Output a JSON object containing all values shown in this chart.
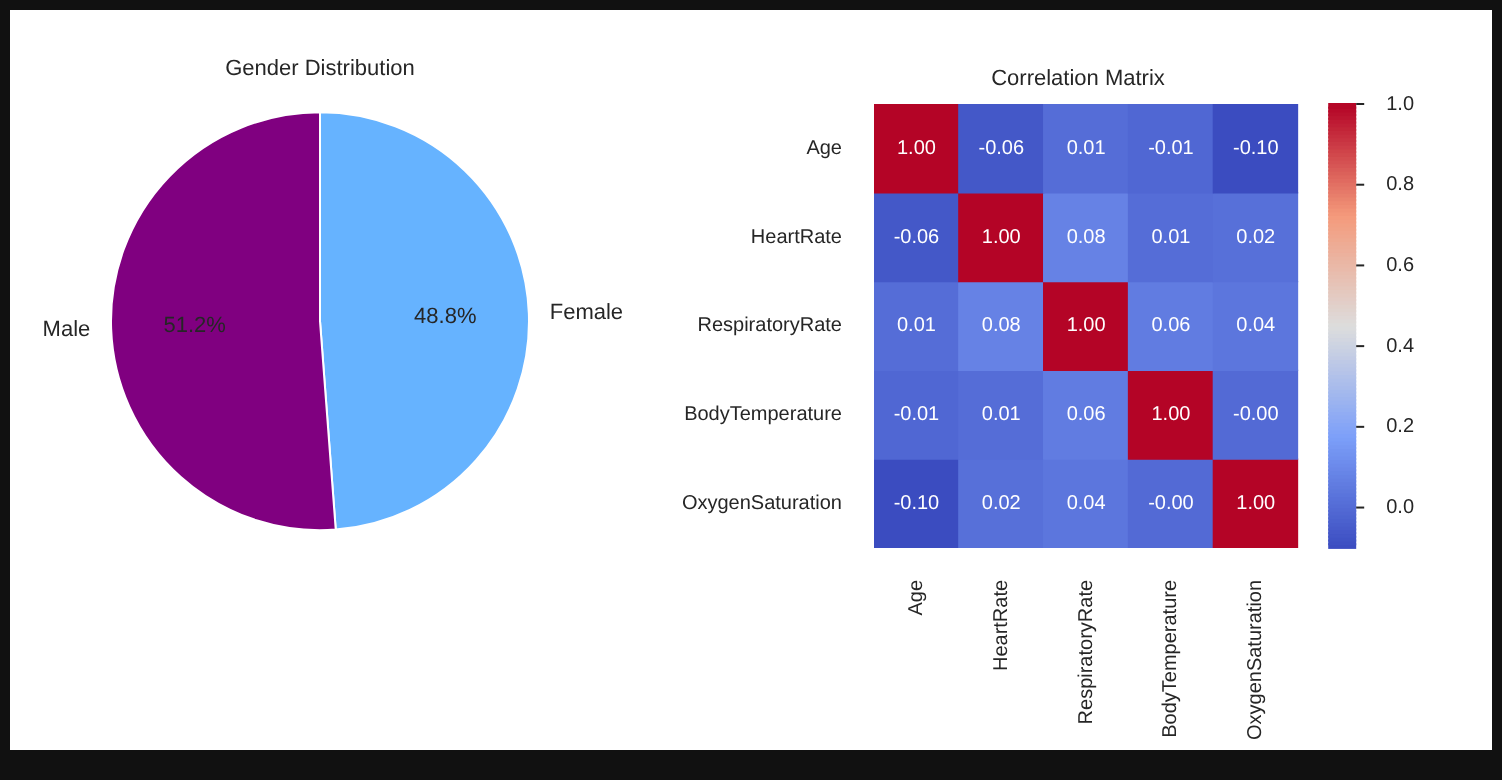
{
  "chart_data": [
    {
      "type": "pie",
      "title": "Gender Distribution",
      "categories": [
        "Female",
        "Male"
      ],
      "values": [
        48.8,
        51.2
      ],
      "colors": [
        "#66b3ff",
        "#800080"
      ],
      "value_labels": [
        "48.8%",
        "51.2%"
      ]
    },
    {
      "type": "heatmap",
      "title": "Correlation Matrix",
      "categories": [
        "Age",
        "HeartRate",
        "RespiratoryRate",
        "BodyTemperature",
        "OxygenSaturation"
      ],
      "y_categories": [
        "Age",
        "HeartRate",
        "RespiratoryRate",
        "BodyTemperature",
        "OxygenSaturation"
      ],
      "cells": [
        [
          1.0,
          -0.06,
          0.01,
          -0.01,
          -0.1
        ],
        [
          -0.06,
          1.0,
          0.08,
          0.01,
          0.02
        ],
        [
          0.01,
          0.08,
          1.0,
          0.06,
          0.04
        ],
        [
          -0.01,
          0.01,
          0.06,
          1.0,
          0
        ],
        [
          -0.1,
          0.02,
          0.04,
          0,
          1.0
        ]
      ],
      "cell_labels": [
        [
          "1.00",
          "-0.06",
          "0.01",
          "-0.01",
          "-0.10"
        ],
        [
          "-0.06",
          "1.00",
          "0.08",
          "0.01",
          "0.02"
        ],
        [
          "0.01",
          "0.08",
          "1.00",
          "0.06",
          "0.04"
        ],
        [
          "-0.01",
          "0.01",
          "0.06",
          "1.00",
          "-0.00"
        ],
        [
          "-0.10",
          "0.02",
          "0.04",
          "-0.00",
          "1.00"
        ]
      ],
      "clim": [
        -0.1,
        1.0
      ],
      "cticks": [
        {
          "value": 0,
          "label": "0.0"
        },
        {
          "value": 0.2,
          "label": "0.2"
        },
        {
          "value": 0.4,
          "label": "0.4"
        },
        {
          "value": 0.6,
          "label": "0.6"
        },
        {
          "value": 0.8,
          "label": "0.8"
        },
        {
          "value": 1,
          "label": "1.0"
        }
      ]
    }
  ]
}
